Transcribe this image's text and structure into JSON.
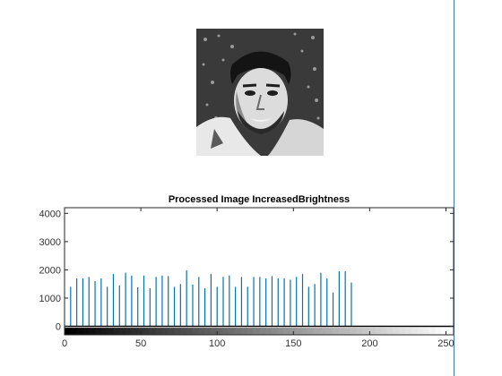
{
  "image": {
    "alt": "",
    "colors": {
      "axis": "#262626",
      "bars": "#0072bd",
      "edge": "#3a7bbf"
    }
  },
  "chart_data": {
    "type": "bar",
    "title": "Processed Image IncreasedBrightness",
    "xlabel": "",
    "ylabel": "",
    "xlim": [
      0,
      255
    ],
    "ylim": [
      -300,
      4200
    ],
    "x_ticks": [
      0,
      50,
      100,
      150,
      200,
      250
    ],
    "y_ticks": [
      0,
      1000,
      2000,
      3000,
      4000
    ],
    "colorbar": "grayscale 0-255",
    "series": [
      {
        "name": "histogram",
        "x": [
          4,
          8,
          12,
          16,
          20,
          24,
          28,
          32,
          36,
          40,
          44,
          48,
          52,
          56,
          60,
          64,
          68,
          72,
          76,
          80,
          84,
          88,
          92,
          96,
          100,
          104,
          108,
          112,
          116,
          120,
          124,
          128,
          132,
          136,
          140,
          144,
          148,
          152,
          156,
          160,
          164,
          168,
          172,
          176,
          180,
          184,
          188,
          192,
          196
        ],
        "values": [
          1400,
          1700,
          1700,
          1750,
          1600,
          1700,
          1400,
          1850,
          1450,
          1900,
          1800,
          1380,
          1800,
          1350,
          1750,
          1800,
          1780,
          1400,
          1500,
          1980,
          1480,
          1750,
          1350,
          1850,
          1400,
          1750,
          1800,
          1400,
          1750,
          1400,
          1750,
          1750,
          1700,
          1780,
          1700,
          1700,
          1650,
          1750,
          1850,
          1400,
          1500,
          1900,
          1700,
          1200,
          1950,
          1950,
          1550,
          0,
          0
        ]
      }
    ]
  }
}
